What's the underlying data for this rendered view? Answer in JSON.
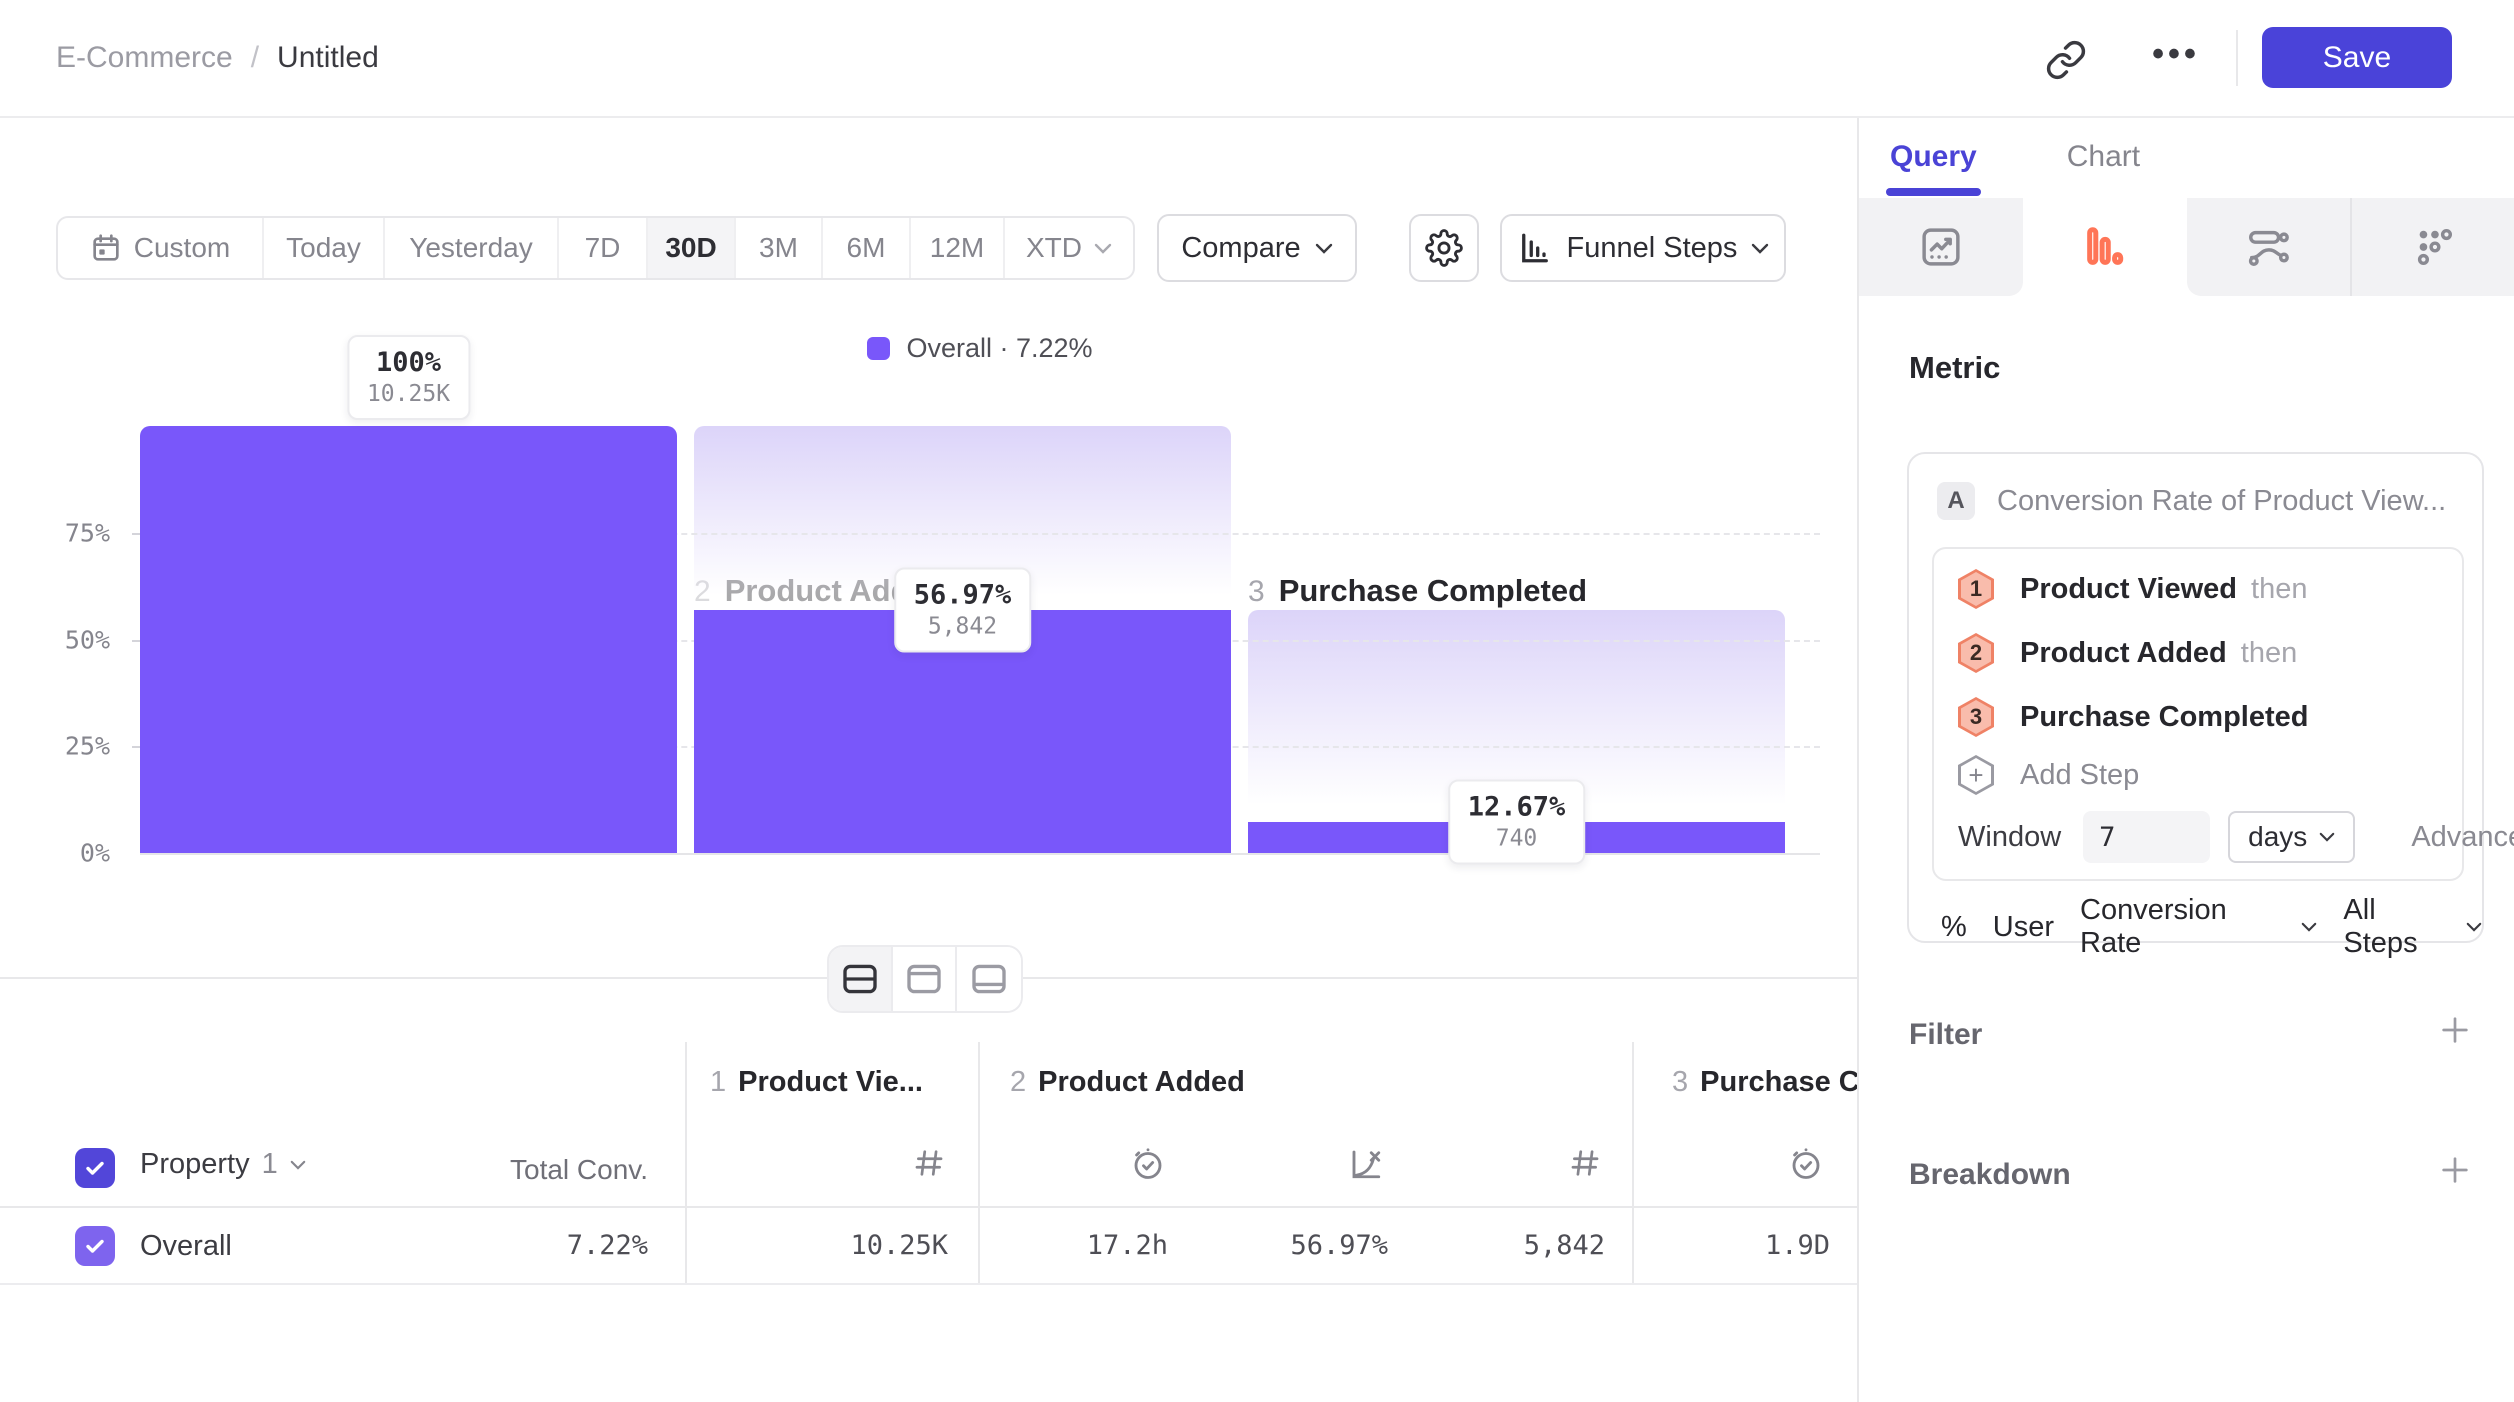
{
  "header": {
    "breadcrumb_parent": "E-Commerce",
    "breadcrumb_sep": "/",
    "breadcrumb_current": "Untitled",
    "more_label": "•••",
    "save_label": "Save"
  },
  "toolbar": {
    "date_ranges": [
      "Custom",
      "Today",
      "Yesterday",
      "7D",
      "30D",
      "3M",
      "6M",
      "12M",
      "XTD"
    ],
    "selected_range": "30D",
    "compare_label": "Compare",
    "viz_label": "Funnel Steps"
  },
  "chart_data": {
    "type": "funnel",
    "legend": "Overall · 7.22%",
    "y_ticks": [
      "75%",
      "50%",
      "25%",
      "0%"
    ],
    "ylim": [
      0,
      100
    ],
    "grid": "dashed-horizontal",
    "steps": [
      {
        "index": "1",
        "name": "Product Viewed",
        "pct_label": "100%",
        "count_label": "10.25K",
        "bar_pct": 100,
        "ghost_pct": null
      },
      {
        "index": "2",
        "name": "Product Added",
        "pct_label": "56.97%",
        "count_label": "5,842",
        "bar_pct": 56.97,
        "ghost_pct": 100
      },
      {
        "index": "3",
        "name": "Purchase Completed",
        "pct_label": "12.67%",
        "count_label": "740",
        "bar_pct": 7.22,
        "ghost_pct": 56.97
      }
    ]
  },
  "table": {
    "property_label": "Property",
    "property_index": "1",
    "total_conv_header": "Total Conv.",
    "col_groups": [
      {
        "num": "1",
        "name": "Product Vie..."
      },
      {
        "num": "2",
        "name": "Product Added"
      },
      {
        "num": "3",
        "name": "Purchase C"
      }
    ],
    "row": {
      "name": "Overall",
      "total_conv": "7.22%",
      "values": [
        "10.25K",
        "17.2h",
        "56.97%",
        "5,842",
        "1.9D"
      ]
    }
  },
  "panel": {
    "tab_query": "Query",
    "tab_chart": "Chart",
    "metric_heading": "Metric",
    "series_badge": "A",
    "series_title": "Conversion Rate of Product View...",
    "steps": [
      {
        "num": "1",
        "name": "Product Viewed",
        "suffix": "then"
      },
      {
        "num": "2",
        "name": "Product Added",
        "suffix": "then"
      },
      {
        "num": "3",
        "name": "Purchase Completed",
        "suffix": ""
      }
    ],
    "add_step_label": "Add Step",
    "window_label": "Window",
    "window_value": "7",
    "window_unit": "days",
    "advanced_label": "Advanced",
    "measure_pct": "%",
    "measure_actor": "User",
    "measure_type": "Conversion Rate",
    "measure_scope": "All Steps",
    "filter_label": "Filter",
    "breakdown_label": "Breakdown"
  },
  "colors": {
    "accent_purple": "#7957fa",
    "save_indigo": "#4a43d9",
    "query_tab_indigo": "#4a43d6",
    "funnel_icon_orange": "#ff7557",
    "step_badge_salmon": "#f9bcac",
    "step_badge_border": "#ef8266"
  }
}
